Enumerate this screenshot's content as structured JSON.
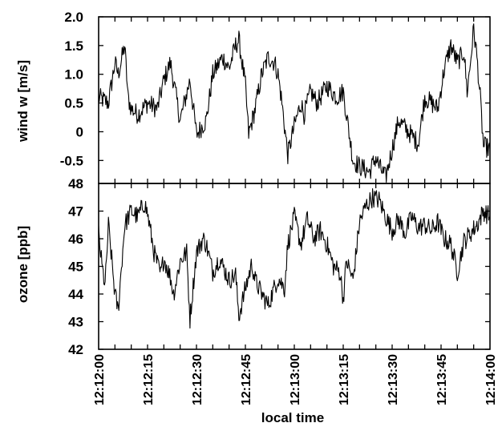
{
  "chart_data": [
    {
      "type": "line",
      "ylabel": "wind w [m/s]",
      "ylim": [
        -0.9,
        2.0
      ],
      "yticks": [
        {
          "value": 2.0,
          "label": "2.0"
        },
        {
          "value": 1.5,
          "label": "1.5"
        },
        {
          "value": 1.0,
          "label": "1.0"
        },
        {
          "value": 0.5,
          "label": "0.5"
        },
        {
          "value": 0.0,
          "label": "0"
        },
        {
          "value": -0.5,
          "label": "-0.5"
        }
      ],
      "xlim": [
        0,
        120
      ],
      "x_unit": "seconds after 12:12:00",
      "series": [
        {
          "x": [
            0,
            3,
            5,
            6,
            8,
            9,
            10,
            12,
            15,
            18,
            20,
            22,
            25,
            28,
            30,
            33,
            35,
            38,
            40,
            42,
            43,
            45,
            46,
            48,
            50,
            52,
            54,
            55,
            56,
            58,
            60,
            62,
            63,
            65,
            67,
            70,
            73,
            75,
            78,
            80,
            83,
            85,
            86,
            88,
            90,
            92,
            95,
            98,
            100,
            102,
            104,
            106,
            108,
            110,
            112,
            113,
            114,
            115,
            116,
            117,
            118,
            120
          ],
          "y": [
            0.6,
            0.5,
            1.2,
            1.0,
            1.5,
            0.6,
            0.4,
            0.3,
            0.5,
            0.4,
            0.9,
            1.2,
            0.2,
            0.9,
            -0.05,
            0.2,
            1.0,
            1.3,
            1.1,
            1.5,
            1.6,
            0.8,
            -0.05,
            0.4,
            1.0,
            1.3,
            1.2,
            1.0,
            0.6,
            -0.4,
            0.1,
            0.5,
            0.3,
            0.7,
            0.5,
            0.8,
            0.6,
            0.7,
            -0.5,
            -0.6,
            -0.7,
            -0.45,
            -0.6,
            -0.8,
            -0.3,
            0.2,
            0.0,
            -0.2,
            0.6,
            0.5,
            0.4,
            1.1,
            1.5,
            1.2,
            1.4,
            0.7,
            1.2,
            1.8,
            1.3,
            0.6,
            -0.25,
            -0.3
          ]
        }
      ]
    },
    {
      "type": "line",
      "ylabel": "ozone [ppb]",
      "ylim": [
        42,
        48
      ],
      "yticks": [
        {
          "value": 48,
          "label": "48"
        },
        {
          "value": 47,
          "label": "47"
        },
        {
          "value": 46,
          "label": "46"
        },
        {
          "value": 45,
          "label": "45"
        },
        {
          "value": 44,
          "label": "44"
        },
        {
          "value": 43,
          "label": "43"
        },
        {
          "value": 42,
          "label": "42"
        }
      ],
      "xlabel": "local time",
      "xlim": [
        0,
        120
      ],
      "xticks": [
        {
          "value": 0,
          "label": "12:12:00"
        },
        {
          "value": 15,
          "label": "12:12:15"
        },
        {
          "value": 30,
          "label": "12:12:30"
        },
        {
          "value": 45,
          "label": "12:12:45"
        },
        {
          "value": 60,
          "label": "12:13:00"
        },
        {
          "value": 75,
          "label": "12:13:15"
        },
        {
          "value": 90,
          "label": "12:13:30"
        },
        {
          "value": 105,
          "label": "12:13:45"
        },
        {
          "value": 120,
          "label": "12:14:00"
        }
      ],
      "series": [
        {
          "x": [
            0,
            1,
            2,
            3,
            5,
            6,
            7,
            8,
            10,
            12,
            14,
            15,
            17,
            19,
            20,
            22,
            23,
            25,
            27,
            28,
            30,
            32,
            33,
            35,
            37,
            40,
            42,
            43,
            45,
            47,
            48,
            50,
            52,
            55,
            57,
            58,
            60,
            61,
            62,
            64,
            66,
            68,
            70,
            72,
            74,
            75,
            76,
            78,
            80,
            82,
            84,
            86,
            88,
            90,
            92,
            94,
            96,
            98,
            100,
            102,
            104,
            106,
            108,
            110,
            112,
            114,
            116,
            118,
            120
          ],
          "y": [
            46.2,
            45.0,
            44.3,
            46.5,
            44.0,
            43.4,
            45.0,
            46.5,
            47.0,
            46.8,
            47.3,
            46.9,
            45.5,
            44.7,
            45.3,
            44.6,
            44.0,
            45.2,
            45.5,
            43.1,
            45.5,
            46.0,
            45.8,
            44.8,
            45.3,
            44.5,
            44.7,
            43.2,
            44.2,
            45.1,
            44.5,
            44.0,
            43.6,
            44.6,
            44.2,
            45.8,
            46.8,
            46.3,
            45.8,
            46.7,
            46.0,
            46.3,
            45.8,
            45.0,
            44.8,
            43.8,
            45.2,
            44.5,
            46.6,
            47.2,
            47.5,
            47.4,
            46.8,
            46.3,
            46.7,
            46.2,
            46.8,
            46.4,
            46.5,
            46.3,
            46.6,
            46.0,
            45.8,
            44.8,
            45.9,
            46.2,
            46.5,
            47.0,
            46.8
          ]
        }
      ]
    }
  ]
}
